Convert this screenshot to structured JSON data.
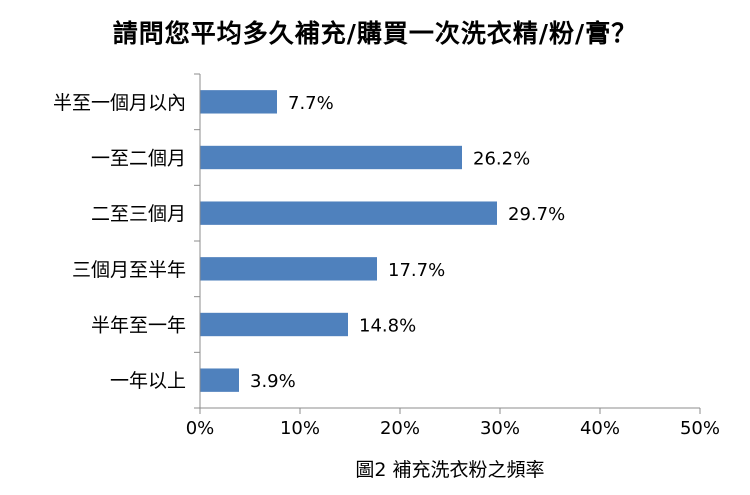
{
  "chart_data": {
    "type": "bar",
    "orientation": "horizontal",
    "title": "請問您平均多久補充/購買一次洗衣精/粉/膏？",
    "caption": "圖2 補充洗衣粉之頻率",
    "categories": [
      "半至一個月以內",
      "一至二個月",
      "二至三個月",
      "三個月至半年",
      "半年至一年",
      "一年以上"
    ],
    "values": [
      7.7,
      26.2,
      29.7,
      17.7,
      14.8,
      3.9
    ],
    "data_labels": [
      "7.7%",
      "26.2%",
      "29.7%",
      "17.7%",
      "14.8%",
      "3.9%"
    ],
    "x_ticks": [
      "0%",
      "10%",
      "20%",
      "30%",
      "40%",
      "50%"
    ],
    "xlim": [
      0,
      50
    ],
    "unit": "%",
    "grid": false,
    "legend": "none",
    "bar_color": "#4F81BD"
  }
}
